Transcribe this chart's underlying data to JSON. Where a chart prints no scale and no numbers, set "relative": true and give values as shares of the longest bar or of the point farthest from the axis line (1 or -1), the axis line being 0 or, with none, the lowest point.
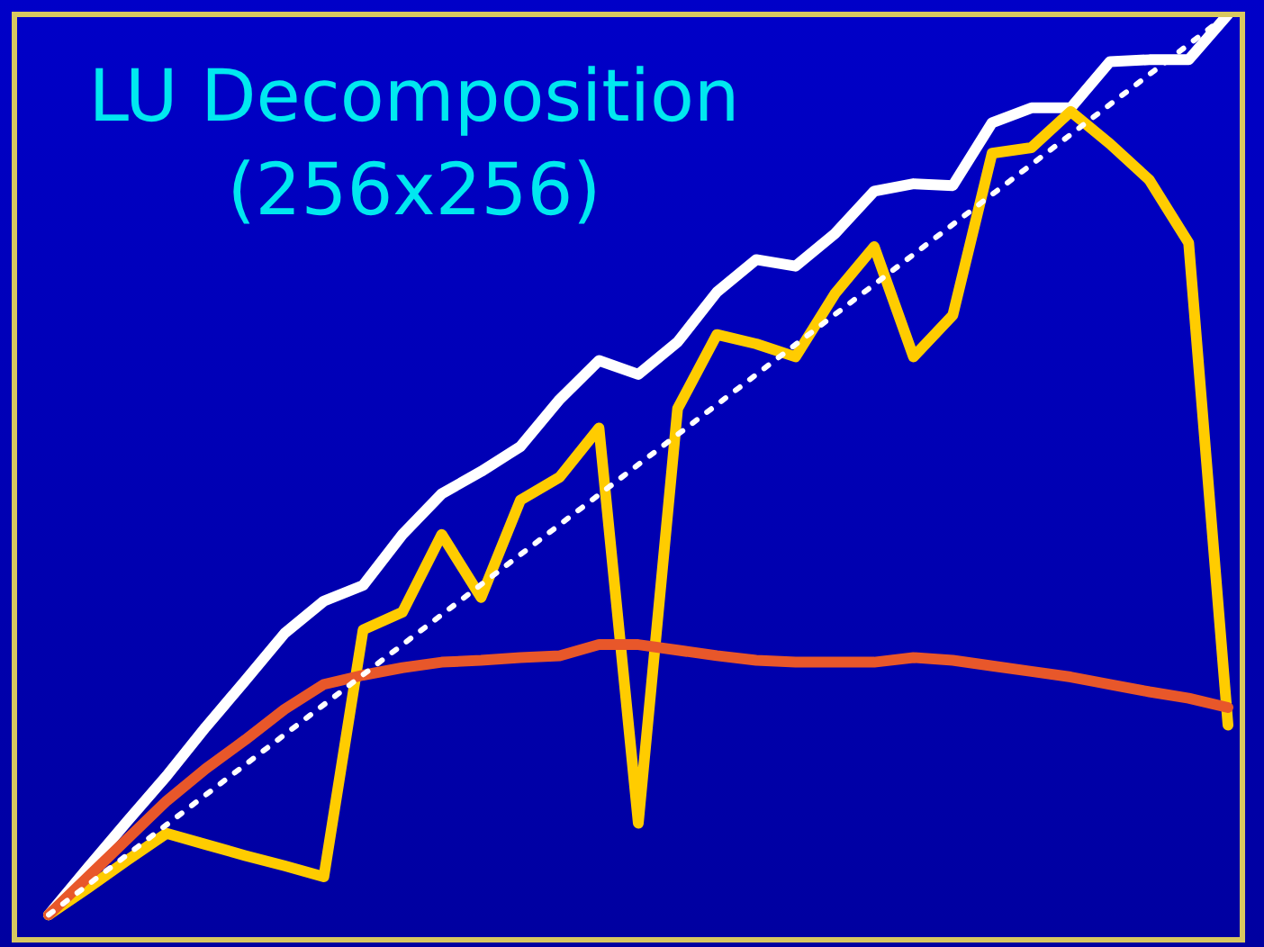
{
  "chart_data": {
    "type": "line",
    "title": "LU Decomposition\n(256x256)",
    "relative": true,
    "legend": false,
    "marker": "none",
    "categories": [
      null,
      null,
      null,
      null,
      null,
      null,
      null,
      null,
      null,
      null,
      null,
      null,
      null,
      null,
      null,
      null,
      null,
      null,
      null,
      null,
      null,
      null,
      null,
      null,
      null,
      null,
      null,
      null,
      null,
      null,
      null
    ],
    "series": [
      {
        "color": "#ffffff",
        "line_style": "dotted",
        "values": [
          0.027,
          null,
          null,
          null,
          null,
          null,
          null,
          null,
          null,
          null,
          null,
          null,
          null,
          null,
          null,
          null,
          null,
          null,
          null,
          null,
          null,
          null,
          null,
          null,
          null,
          null,
          null,
          null,
          null,
          null,
          1.0
        ]
      },
      {
        "color": "#e8572a",
        "values": [
          0.027,
          0.068,
          0.109,
          0.15,
          0.185,
          0.216,
          0.249,
          0.276,
          0.286,
          0.294,
          0.3,
          0.302,
          0.305,
          0.307,
          0.319,
          0.319,
          0.313,
          0.307,
          0.302,
          0.3,
          0.3,
          0.3,
          0.305,
          0.302,
          0.296,
          0.29,
          0.284,
          0.276,
          0.268,
          0.261,
          0.251
        ]
      },
      {
        "color": "#ffcc00",
        "values": [
          0.027,
          0.056,
          0.086,
          0.115,
          0.103,
          0.091,
          0.08,
          0.068,
          0.335,
          0.354,
          0.438,
          0.37,
          0.475,
          0.5,
          0.553,
          0.126,
          0.574,
          0.654,
          0.644,
          0.63,
          0.698,
          0.749,
          0.63,
          0.675,
          0.85,
          0.856,
          0.895,
          0.86,
          0.821,
          0.753,
          0.232
        ]
      },
      {
        "color": "#ffffff",
        "values": [
          0.027,
          0.078,
          0.128,
          0.177,
          0.23,
          0.28,
          0.331,
          0.366,
          0.383,
          0.438,
          0.482,
          0.506,
          0.533,
          0.584,
          0.626,
          0.611,
          0.646,
          0.7,
          0.735,
          0.728,
          0.763,
          0.809,
          0.817,
          0.815,
          0.883,
          0.899,
          0.899,
          0.949,
          0.951,
          0.951,
          1.0
        ]
      }
    ]
  }
}
